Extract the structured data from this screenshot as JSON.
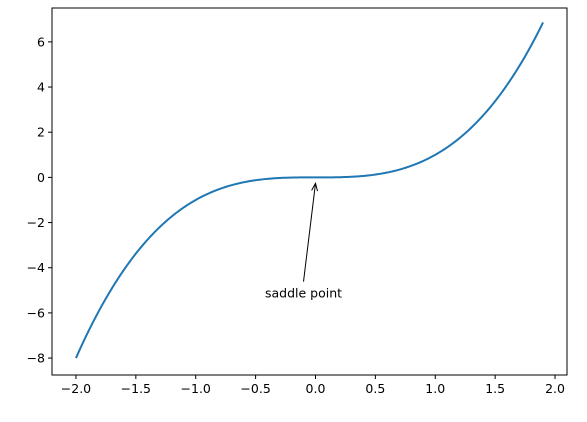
{
  "chart_data": {
    "type": "line",
    "title": "",
    "xlabel": "",
    "ylabel": "",
    "xlim": [
      -2.2,
      2.1
    ],
    "ylim": [
      -8.75,
      7.5
    ],
    "grid": false,
    "series": [
      {
        "function": "x^3",
        "x_start": -2.0,
        "x_end": 1.9,
        "color": "#1f77b4"
      }
    ],
    "xticks": [
      {
        "value": -2.0,
        "label": "−2.0"
      },
      {
        "value": -1.5,
        "label": "−1.5"
      },
      {
        "value": -1.0,
        "label": "−1.0"
      },
      {
        "value": -0.5,
        "label": "−0.5"
      },
      {
        "value": 0.0,
        "label": "0.0"
      },
      {
        "value": 0.5,
        "label": "0.5"
      },
      {
        "value": 1.0,
        "label": "1.0"
      },
      {
        "value": 1.5,
        "label": "1.5"
      },
      {
        "value": 2.0,
        "label": "2.0"
      }
    ],
    "yticks": [
      {
        "value": -8,
        "label": "−8"
      },
      {
        "value": -6,
        "label": "−6"
      },
      {
        "value": -4,
        "label": "−4"
      },
      {
        "value": -2,
        "label": "−2"
      },
      {
        "value": 0,
        "label": "0"
      },
      {
        "value": 2,
        "label": "2"
      },
      {
        "value": 4,
        "label": "4"
      },
      {
        "value": 6,
        "label": "6"
      }
    ],
    "annotations": [
      {
        "text": "saddle point",
        "xy": [
          0.0,
          0.0
        ],
        "xytext": [
          -0.1,
          -4.7
        ]
      }
    ]
  }
}
